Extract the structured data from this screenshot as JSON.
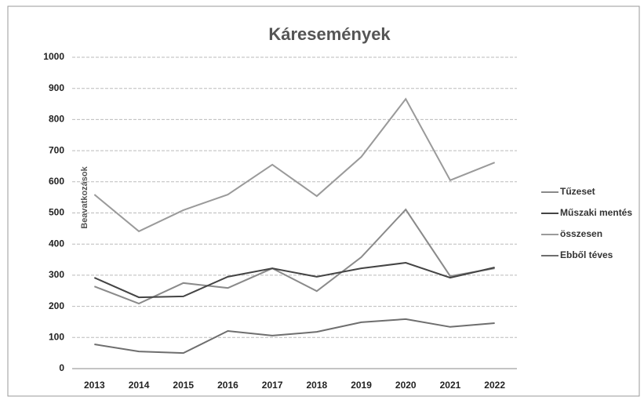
{
  "chart_data": {
    "type": "line",
    "title": "Káresemények",
    "y_label": "Beavatkozások",
    "categories": [
      "2013",
      "2014",
      "2015",
      "2016",
      "2017",
      "2018",
      "2019",
      "2020",
      "2021",
      "2022"
    ],
    "series": [
      {
        "name": "Tűzeset",
        "color": "#8a8a8a",
        "values": [
          264,
          209,
          275,
          259,
          322,
          249,
          358,
          511,
          297,
          322
        ]
      },
      {
        "name": "Műszaki mentés",
        "color": "#444444",
        "values": [
          292,
          229,
          232,
          295,
          322,
          295,
          322,
          340,
          292,
          325
        ]
      },
      {
        "name": "összesen",
        "color": "#9a9a9a",
        "values": [
          559,
          441,
          509,
          559,
          655,
          554,
          680,
          866,
          605,
          662
        ]
      },
      {
        "name": "Ebből téves",
        "color": "#6e6e6e",
        "values": [
          78,
          55,
          50,
          121,
          106,
          118,
          149,
          159,
          134,
          146
        ]
      }
    ],
    "ylim": [
      0,
      1000
    ],
    "yticks": [
      0,
      100,
      200,
      300,
      400,
      500,
      600,
      700,
      800,
      900,
      1000
    ],
    "grid": true,
    "legend": "right"
  }
}
